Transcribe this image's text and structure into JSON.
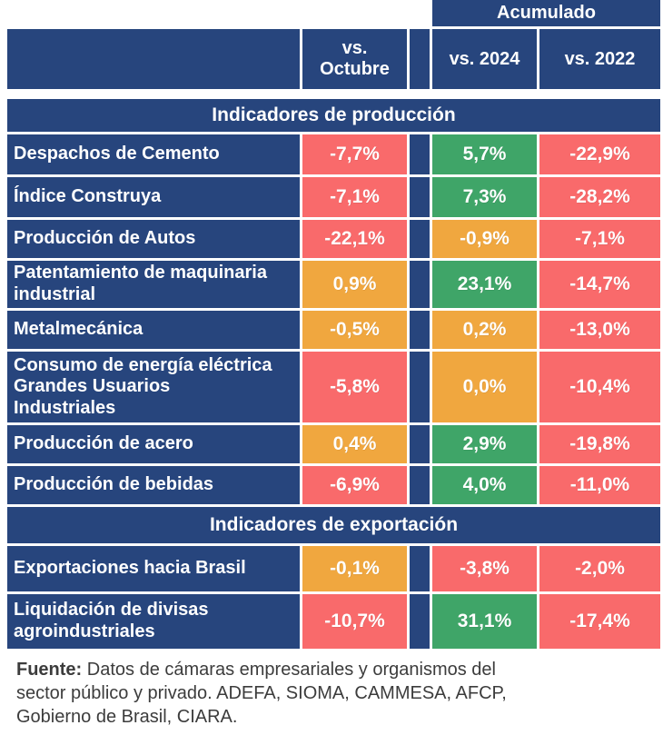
{
  "header": {
    "acumulado_label": "Acumulado",
    "vs_octubre_label": "vs.\nOctubre",
    "vs_2024_label": "vs. 2024",
    "vs_2022_label": "vs. 2022"
  },
  "colors": {
    "navy": "#27457D",
    "red": "#F96A6B",
    "green": "#3FA568",
    "orange": "#F0A73F"
  },
  "chart_data": {
    "type": "table",
    "columns": [
      "",
      "vs. Octubre",
      "Acumulado vs. 2024",
      "Acumulado vs. 2022"
    ],
    "sections": [
      {
        "title": "Indicadores de producción",
        "rows": [
          {
            "label": "Despachos de Cemento",
            "values": [
              {
                "text": "-7,7%",
                "color": "red"
              },
              {
                "text": "5,7%",
                "color": "green"
              },
              {
                "text": "-22,9%",
                "color": "red"
              }
            ]
          },
          {
            "label": "Índice Construya",
            "values": [
              {
                "text": "-7,1%",
                "color": "red"
              },
              {
                "text": "7,3%",
                "color": "green"
              },
              {
                "text": "-28,2%",
                "color": "red"
              }
            ]
          },
          {
            "label": "Producción de Autos",
            "values": [
              {
                "text": "-22,1%",
                "color": "red"
              },
              {
                "text": "-0,9%",
                "color": "orange"
              },
              {
                "text": "-7,1%",
                "color": "red"
              }
            ]
          },
          {
            "label": "Patentamiento de maquinaria industrial",
            "values": [
              {
                "text": "0,9%",
                "color": "orange"
              },
              {
                "text": "23,1%",
                "color": "green"
              },
              {
                "text": "-14,7%",
                "color": "red"
              }
            ]
          },
          {
            "label": "Metalmecánica",
            "values": [
              {
                "text": "-0,5%",
                "color": "orange"
              },
              {
                "text": "0,2%",
                "color": "orange"
              },
              {
                "text": "-13,0%",
                "color": "red"
              }
            ]
          },
          {
            "label": "Consumo de energía eléctrica Grandes Usuarios Industriales",
            "values": [
              {
                "text": "-5,8%",
                "color": "red"
              },
              {
                "text": "0,0%",
                "color": "orange"
              },
              {
                "text": "-10,4%",
                "color": "red"
              }
            ]
          },
          {
            "label": "Producción de acero",
            "values": [
              {
                "text": "0,4%",
                "color": "orange"
              },
              {
                "text": "2,9%",
                "color": "green"
              },
              {
                "text": "-19,8%",
                "color": "red"
              }
            ]
          },
          {
            "label": "Producción de bebidas",
            "values": [
              {
                "text": "-6,9%",
                "color": "red"
              },
              {
                "text": "4,0%",
                "color": "green"
              },
              {
                "text": "-11,0%",
                "color": "red"
              }
            ]
          }
        ]
      },
      {
        "title": "Indicadores de exportación",
        "rows": [
          {
            "label": "Exportaciones hacia Brasil",
            "values": [
              {
                "text": "-0,1%",
                "color": "orange"
              },
              {
                "text": "-3,8%",
                "color": "red"
              },
              {
                "text": "-2,0%",
                "color": "red"
              }
            ]
          },
          {
            "label": "Liquidación de divisas agroindustriales",
            "values": [
              {
                "text": "-10,7%",
                "color": "red"
              },
              {
                "text": "31,1%",
                "color": "green"
              },
              {
                "text": "-17,4%",
                "color": "red"
              }
            ]
          }
        ]
      }
    ]
  },
  "footer": {
    "source_label": "Fuente:",
    "source_text": " Datos de cámaras empresariales y organismos del sector público y privado. ADEFA, SIOMA, CAMMESA, AFCP, Gobierno de Brasil, CIARA."
  }
}
